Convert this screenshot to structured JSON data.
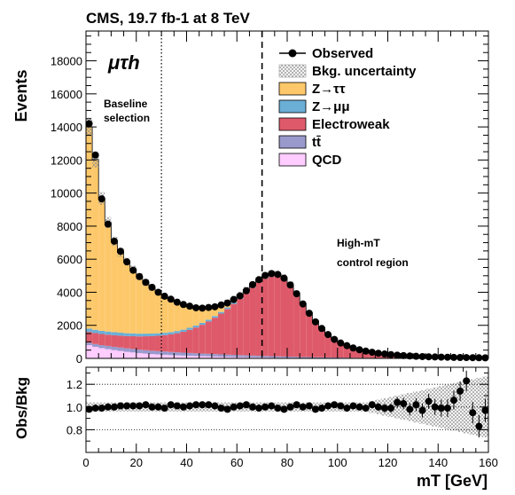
{
  "chart_data": {
    "type": "bar",
    "title": "CMS, 19.7 fb-1 at 8 TeV",
    "channel": "μτh",
    "annotations": {
      "baseline_line1": "Baseline",
      "baseline_line2": "selection",
      "control_line1": "High-mT",
      "control_line2": "control region"
    },
    "xlabel": "mT [GeV]",
    "ylabel": "Events",
    "ratio_ylabel": "Obs/Bkg",
    "xlim": [
      0,
      160
    ],
    "ylim": [
      0,
      19800
    ],
    "ratio_ylim": [
      0.6,
      1.35
    ],
    "x_ticks": [
      0,
      20,
      40,
      60,
      80,
      100,
      120,
      140,
      160
    ],
    "y_ticks": [
      0,
      2000,
      4000,
      6000,
      8000,
      10000,
      12000,
      14000,
      16000,
      18000
    ],
    "ratio_ticks": [
      0.8,
      1.0,
      1.2
    ],
    "ratio_tick_labels": [
      "0.8",
      "1.0",
      "1.2"
    ],
    "vlines": [
      {
        "x": 30,
        "style": "dotted"
      },
      {
        "x": 70,
        "style": "dashed"
      }
    ],
    "bin_width": 2.5,
    "x": [
      1.25,
      3.75,
      6.25,
      8.75,
      11.25,
      13.75,
      16.25,
      18.75,
      21.25,
      23.75,
      26.25,
      28.75,
      31.25,
      33.75,
      36.25,
      38.75,
      41.25,
      43.75,
      46.25,
      48.75,
      51.25,
      53.75,
      56.25,
      58.75,
      61.25,
      63.75,
      66.25,
      68.75,
      71.25,
      73.75,
      76.25,
      78.75,
      81.25,
      83.75,
      86.25,
      88.75,
      91.25,
      93.75,
      96.25,
      98.75,
      101.25,
      103.75,
      106.25,
      108.75,
      111.25,
      113.75,
      116.25,
      118.75,
      121.25,
      123.75,
      126.25,
      128.75,
      131.25,
      133.75,
      136.25,
      138.75,
      141.25,
      143.75,
      146.25,
      148.75,
      151.25,
      153.75,
      156.25,
      158.75
    ],
    "series": [
      {
        "name": "QCD",
        "color": "#ffccff",
        "values": [
          800,
          700,
          620,
          560,
          500,
          450,
          400,
          360,
          320,
          290,
          260,
          240,
          220,
          200,
          185,
          170,
          155,
          145,
          135,
          125,
          115,
          105,
          98,
          90,
          82,
          75,
          68,
          62,
          56,
          50,
          45,
          40,
          36,
          32,
          28,
          25,
          22,
          20,
          18,
          16,
          14,
          12,
          10,
          9,
          8,
          7,
          6,
          5,
          5,
          4,
          4,
          3,
          3,
          3,
          2,
          2,
          2,
          2,
          1,
          1,
          1,
          1,
          1,
          1
        ]
      },
      {
        "name": "tt̄",
        "color": "#9999cc",
        "values": [
          150,
          170,
          185,
          195,
          200,
          205,
          208,
          210,
          210,
          208,
          205,
          200,
          195,
          190,
          185,
          178,
          172,
          165,
          158,
          150,
          143,
          136,
          129,
          122,
          115,
          108,
          101,
          95,
          89,
          83,
          77,
          72,
          67,
          62,
          57,
          53,
          49,
          45,
          41,
          38,
          35,
          32,
          29,
          27,
          25,
          23,
          21,
          19,
          17,
          16,
          14,
          13,
          12,
          11,
          10,
          9,
          8,
          8,
          7,
          6,
          6,
          5,
          5,
          4
        ]
      },
      {
        "name": "Electroweak",
        "color": "#de5a6a",
        "values": [
          650,
          660,
          670,
          680,
          700,
          720,
          740,
          770,
          800,
          840,
          880,
          930,
          990,
          1060,
          1150,
          1260,
          1400,
          1560,
          1740,
          1960,
          2200,
          2470,
          2760,
          3080,
          3400,
          3750,
          4100,
          4450,
          4720,
          4870,
          4880,
          4700,
          4300,
          3800,
          3200,
          2650,
          2150,
          1720,
          1380,
          1100,
          890,
          730,
          600,
          500,
          420,
          350,
          295,
          250,
          215,
          185,
          160,
          138,
          120,
          105,
          92,
          81,
          72,
          64,
          57,
          51,
          46,
          41,
          37,
          33
        ]
      },
      {
        "name": "Z→μμ",
        "color": "#6baed6",
        "values": [
          200,
          200,
          195,
          190,
          185,
          180,
          175,
          170,
          165,
          160,
          155,
          150,
          145,
          140,
          135,
          130,
          125,
          120,
          115,
          110,
          105,
          100,
          95,
          90,
          85,
          80,
          75,
          70,
          65,
          60,
          55,
          50,
          45,
          40,
          36,
          32,
          28,
          25,
          22,
          20,
          18,
          16,
          14,
          12,
          11,
          10,
          9,
          8,
          7,
          6,
          6,
          5,
          5,
          4,
          4,
          3,
          3,
          3,
          2,
          2,
          2,
          2,
          1,
          1
        ]
      },
      {
        "name": "Z→ττ",
        "color": "#fdc86a",
        "values": [
          12200,
          10300,
          8000,
          6600,
          5500,
          4850,
          4330,
          3880,
          3450,
          3100,
          2750,
          2450,
          2200,
          1950,
          1700,
          1480,
          1250,
          1040,
          850,
          680,
          540,
          420,
          330,
          255,
          195,
          150,
          112,
          85,
          63,
          47,
          35,
          27,
          20,
          15,
          12,
          9,
          7,
          6,
          5,
          4,
          3,
          3,
          2,
          2,
          2,
          1,
          1,
          1,
          1,
          1,
          1,
          1,
          0,
          0,
          0,
          0,
          0,
          0,
          0,
          0,
          0,
          0,
          0,
          0
        ]
      }
    ],
    "observed": [
      14200,
      12300,
      9650,
      8120,
      7090,
      6480,
      5840,
      5330,
      4950,
      4600,
      4300,
      4000,
      3760,
      3580,
      3400,
      3260,
      3160,
      3060,
      3040,
      3080,
      3120,
      3230,
      3350,
      3560,
      3780,
      4090,
      4460,
      4760,
      5020,
      5130,
      5080,
      4850,
      4440,
      3910,
      3290,
      2730,
      2210,
      1810,
      1440,
      1150,
      930,
      770,
      630,
      520,
      440,
      370,
      310,
      265,
      230,
      195,
      170,
      145,
      126,
      110,
      96,
      86,
      77,
      69,
      61,
      54,
      48,
      42,
      38,
      34
    ],
    "ratio": [
      0.98,
      0.99,
      0.99,
      1.0,
      1.0,
      1.01,
      1.01,
      1.01,
      1.01,
      1.02,
      1.0,
      1.0,
      0.99,
      1.02,
      1.01,
      1.0,
      1.01,
      1.02,
      1.02,
      1.02,
      1.01,
      0.99,
      0.98,
      1.0,
      1.01,
      1.02,
      1.0,
      0.99,
      1.0,
      1.01,
      0.99,
      0.98,
      1.0,
      1.02,
      1.0,
      1.01,
      0.98,
      0.99,
      1.01,
      1.02,
      1.01,
      0.99,
      1.01,
      1.0,
      0.99,
      1.02,
      1.0,
      0.99,
      0.99,
      1.04,
      1.03,
      0.98,
      1.02,
      0.97,
      1.05,
      1.0,
      0.99,
      0.99,
      1.06,
      1.14,
      1.23,
      0.95,
      0.83,
      0.97
    ],
    "legend": {
      "placement": "top-right",
      "entries": [
        "Observed",
        "Bkg. uncertainty",
        "Z→ττ",
        "Z→μμ",
        "Electroweak",
        "tt̄",
        "QCD"
      ]
    }
  }
}
